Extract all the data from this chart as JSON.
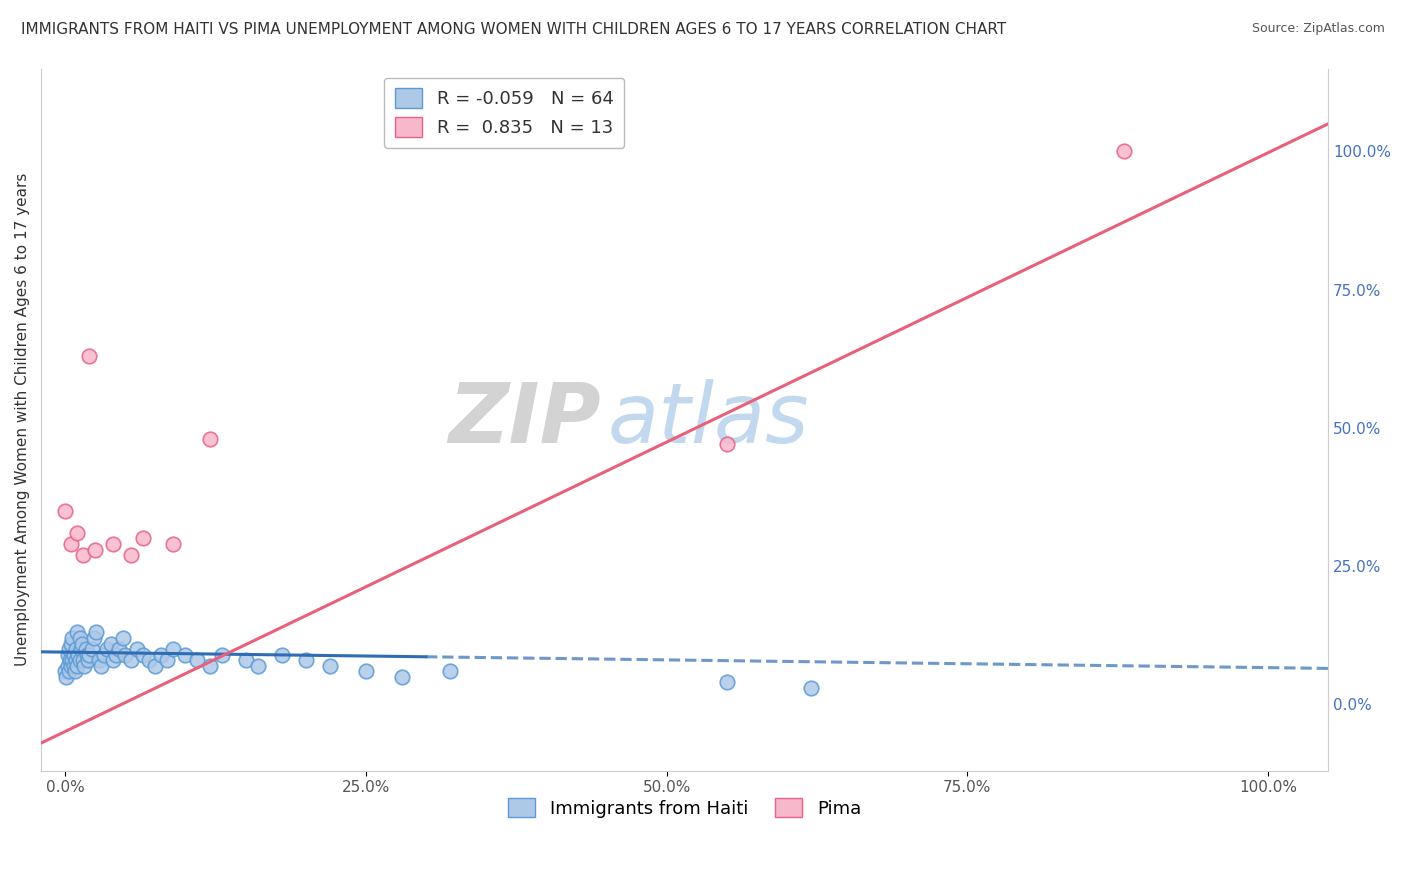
{
  "title": "IMMIGRANTS FROM HAITI VS PIMA UNEMPLOYMENT AMONG WOMEN WITH CHILDREN AGES 6 TO 17 YEARS CORRELATION CHART",
  "source": "Source: ZipAtlas.com",
  "ylabel": "Unemployment Among Women with Children Ages 6 to 17 years",
  "watermark_zip": "ZIP",
  "watermark_atlas": "atlas",
  "blue_label": "Immigrants from Haiti",
  "pink_label": "Pima",
  "blue_R": -0.059,
  "blue_N": 64,
  "pink_R": 0.835,
  "pink_N": 13,
  "blue_fill": "#aec8e8",
  "pink_fill": "#f7b8cb",
  "blue_edge": "#5b9bd5",
  "pink_edge": "#e86088",
  "blue_line_color": "#2e6db4",
  "pink_line_color": "#e8607a",
  "blue_scatter_x": [
    0.0,
    0.001,
    0.002,
    0.002,
    0.003,
    0.003,
    0.004,
    0.005,
    0.005,
    0.006,
    0.006,
    0.007,
    0.007,
    0.008,
    0.009,
    0.009,
    0.01,
    0.01,
    0.011,
    0.012,
    0.012,
    0.013,
    0.014,
    0.015,
    0.016,
    0.017,
    0.018,
    0.019,
    0.02,
    0.022,
    0.024,
    0.026,
    0.028,
    0.03,
    0.032,
    0.035,
    0.038,
    0.04,
    0.042,
    0.045,
    0.048,
    0.05,
    0.055,
    0.06,
    0.065,
    0.07,
    0.075,
    0.08,
    0.085,
    0.09,
    0.1,
    0.11,
    0.12,
    0.13,
    0.15,
    0.16,
    0.18,
    0.2,
    0.22,
    0.25,
    0.28,
    0.32,
    0.55,
    0.62
  ],
  "blue_scatter_y": [
    0.06,
    0.05,
    0.07,
    0.09,
    0.06,
    0.1,
    0.08,
    0.07,
    0.11,
    0.08,
    0.12,
    0.07,
    0.09,
    0.06,
    0.08,
    0.1,
    0.07,
    0.13,
    0.09,
    0.08,
    0.12,
    0.1,
    0.11,
    0.08,
    0.07,
    0.1,
    0.09,
    0.08,
    0.09,
    0.1,
    0.12,
    0.13,
    0.08,
    0.07,
    0.09,
    0.1,
    0.11,
    0.08,
    0.09,
    0.1,
    0.12,
    0.09,
    0.08,
    0.1,
    0.09,
    0.08,
    0.07,
    0.09,
    0.08,
    0.1,
    0.09,
    0.08,
    0.07,
    0.09,
    0.08,
    0.07,
    0.09,
    0.08,
    0.07,
    0.06,
    0.05,
    0.06,
    0.04,
    0.03
  ],
  "pink_scatter_x": [
    0.0,
    0.005,
    0.01,
    0.015,
    0.02,
    0.025,
    0.04,
    0.055,
    0.065,
    0.09,
    0.12,
    0.55,
    0.88
  ],
  "pink_scatter_y": [
    0.35,
    0.29,
    0.31,
    0.27,
    0.63,
    0.28,
    0.29,
    0.27,
    0.3,
    0.29,
    0.48,
    0.47,
    1.0
  ],
  "blue_trend_x": [
    -0.02,
    1.05
  ],
  "blue_trend_y": [
    0.095,
    0.065
  ],
  "pink_trend_x": [
    -0.02,
    1.05
  ],
  "pink_trend_y": [
    -0.07,
    1.05
  ],
  "xlim": [
    -0.02,
    1.05
  ],
  "ylim": [
    -0.12,
    1.15
  ],
  "right_yticks": [
    0.0,
    0.25,
    0.5,
    0.75,
    1.0
  ],
  "right_ytick_labels": [
    "0.0%",
    "25.0%",
    "50.0%",
    "75.0%",
    "100.0%"
  ],
  "xticks": [
    0.0,
    0.25,
    0.5,
    0.75,
    1.0
  ],
  "xtick_labels": [
    "0.0%",
    "25.0%",
    "50.0%",
    "75.0%",
    "100.0%"
  ],
  "grid_color": "#cccccc",
  "background_color": "#ffffff",
  "title_fontsize": 11,
  "axis_label_fontsize": 11,
  "tick_fontsize": 11,
  "legend_fontsize": 13,
  "right_tick_color": "#4472c4"
}
